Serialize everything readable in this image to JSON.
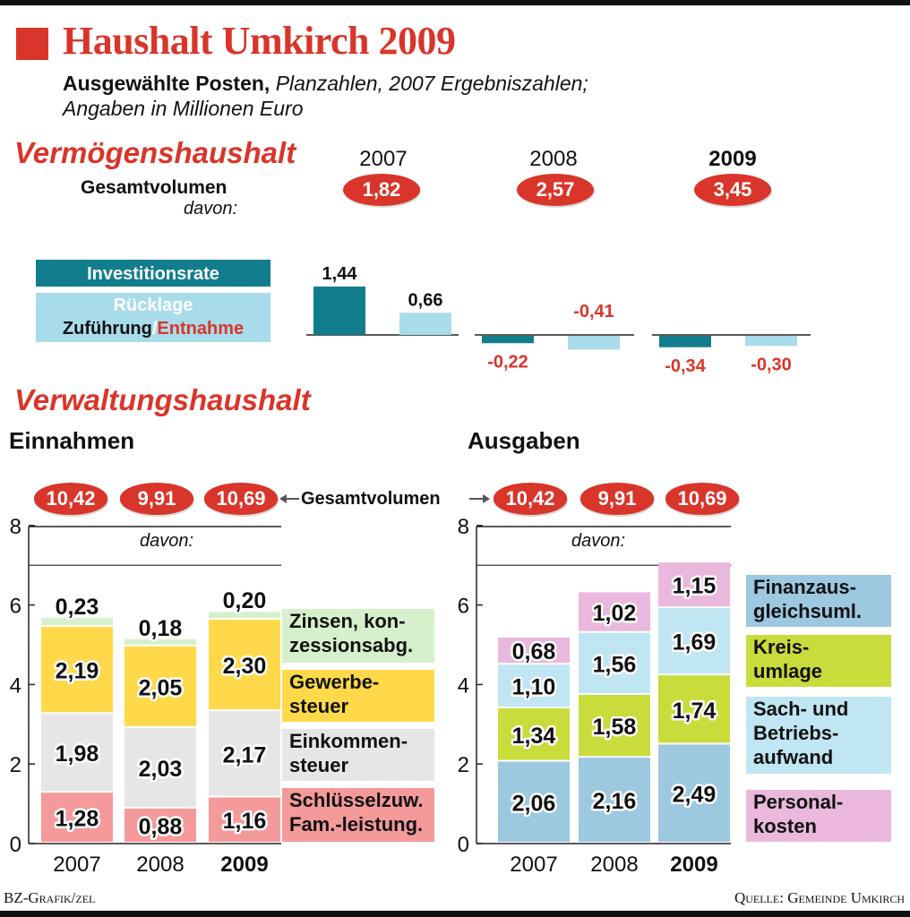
{
  "title": "Haushalt Umkirch 2009",
  "subtitle_bold": "Ausgewählte Posten,",
  "subtitle_italic": "Planzahlen, 2007 Ergebniszahlen;",
  "subtitle_line2": "Angaben in Millionen Euro",
  "vermoegen": {
    "heading": "Vermögenshaushalt",
    "gesamt_label": "Gesamtvolumen",
    "davon": "davon:",
    "years": [
      "2007",
      "2008",
      "2009"
    ],
    "gesamt": [
      "1,82",
      "2,57",
      "3,45"
    ],
    "legend_investition": "Investitionsrate",
    "legend_ruecklage": "Rücklage",
    "legend_zufuehrung": "Zuführung",
    "legend_slash": "/",
    "legend_entnahme": "Entnahme",
    "colors": {
      "investition": "#127d8d",
      "ruecklage": "#a8dcea",
      "negative_label": "#d9352a"
    }
  },
  "verwaltung": {
    "heading": "Verwaltungshaushalt",
    "einnahmen_title": "Einnahmen",
    "ausgaben_title": "Ausgaben",
    "gesamt_label": "Gesamtvolumen",
    "davon": "davon:",
    "gesamt": [
      "10,42",
      "9,91",
      "10,69"
    ],
    "einnahmen_legend": [
      {
        "text": "Zinsen, kon-\nzessionsabg.",
        "color": "#d6f0cc"
      },
      {
        "text": "Gewerbe-\nsteuer",
        "color": "#ffd94a"
      },
      {
        "text": "Einkommen-\nsteuer",
        "color": "#e6e6e6"
      },
      {
        "text": "Schlüsselzuw.\nFam.-leistung.",
        "color": "#f59a9a"
      }
    ],
    "ausgaben_legend": [
      {
        "text": "Finanzaus-\ngleichsuml.",
        "color": "#9cc8e0"
      },
      {
        "text": "Kreis-\numlage",
        "color": "#c8dc3c"
      },
      {
        "text": "Sach- und\nBetriebs-\naufwand",
        "color": "#bfe6f2"
      },
      {
        "text": "Personal-\nkosten",
        "color": "#eab8dc"
      }
    ]
  },
  "chart_data": [
    {
      "type": "bar",
      "title": "Vermögenshaushalt",
      "categories": [
        "2007",
        "2008",
        "2009"
      ],
      "series": [
        {
          "name": "Investitionsrate",
          "values": [
            1.44,
            -0.22,
            -0.34
          ],
          "labels": [
            "1,44",
            "-0,22",
            "-0,34"
          ]
        },
        {
          "name": "Rücklage Zuführung/Entnahme",
          "values": [
            0.66,
            -0.41,
            -0.3
          ],
          "labels": [
            "0,66",
            "-0,41",
            "-0,30"
          ]
        }
      ]
    },
    {
      "type": "bar",
      "stacked": true,
      "title": "Einnahmen",
      "categories": [
        "2007",
        "2008",
        "2009"
      ],
      "yticks": [
        "0",
        "2",
        "4",
        "6",
        "8"
      ],
      "ylim": [
        0,
        8
      ],
      "series": [
        {
          "name": "Schlüsselzuw. Fam.-leistung.",
          "values": [
            1.28,
            0.88,
            1.16
          ],
          "labels": [
            "1,28",
            "0,88",
            "1,16"
          ],
          "color": "#f59a9a"
        },
        {
          "name": "Einkommensteuer",
          "values": [
            1.98,
            2.03,
            2.17
          ],
          "labels": [
            "1,98",
            "2,03",
            "2,17"
          ],
          "color": "#e6e6e6"
        },
        {
          "name": "Gewerbesteuer",
          "values": [
            2.19,
            2.05,
            2.3
          ],
          "labels": [
            "2,19",
            "2,05",
            "2,30"
          ],
          "color": "#ffd94a"
        },
        {
          "name": "Zinsen, konzessionsabg.",
          "values": [
            0.23,
            0.18,
            0.2
          ],
          "labels": [
            "0,23",
            "0,18",
            "0,20"
          ],
          "color": "#d6f0cc"
        }
      ]
    },
    {
      "type": "bar",
      "stacked": true,
      "title": "Ausgaben",
      "categories": [
        "2007",
        "2008",
        "2009"
      ],
      "yticks": [
        "0",
        "2",
        "4",
        "6",
        "8"
      ],
      "ylim": [
        0,
        8
      ],
      "series": [
        {
          "name": "Finanzausgleichsuml.",
          "values": [
            2.06,
            2.16,
            2.49
          ],
          "labels": [
            "2,06",
            "2,16",
            "2,49"
          ],
          "color": "#9cc8e0"
        },
        {
          "name": "Kreisumlage",
          "values": [
            1.34,
            1.58,
            1.74
          ],
          "labels": [
            "1,34",
            "1,58",
            "1,74"
          ],
          "color": "#c8dc3c"
        },
        {
          "name": "Sach- und Betriebsaufwand",
          "values": [
            1.1,
            1.56,
            1.69
          ],
          "labels": [
            "1,10",
            "1,56",
            "1,69"
          ],
          "color": "#bfe6f2"
        },
        {
          "name": "Personalkosten",
          "values": [
            0.68,
            1.02,
            1.15
          ],
          "labels": [
            "0,68",
            "1,02",
            "1,15"
          ],
          "color": "#eab8dc"
        }
      ]
    }
  ],
  "footer_left": "BZ-Grafik/zel",
  "footer_right": "Quelle: Gemeinde Umkirch"
}
